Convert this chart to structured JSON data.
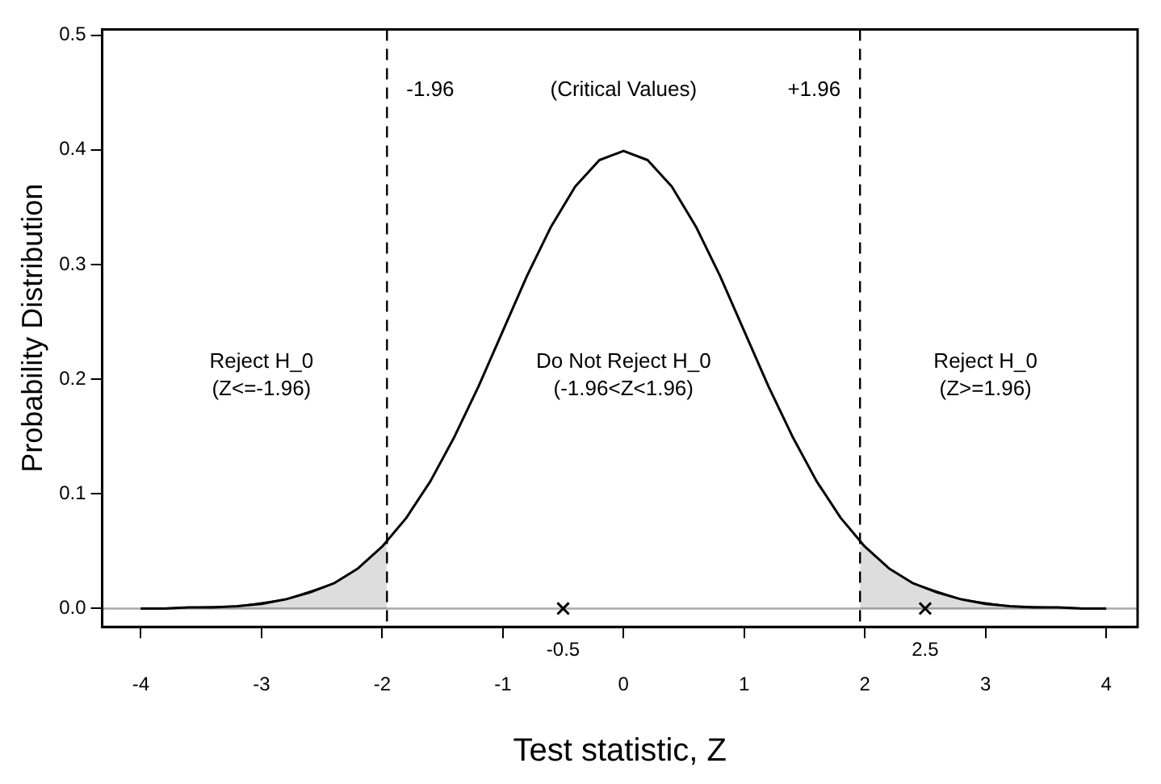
{
  "chart_data": {
    "type": "line",
    "xlabel": "Test statistic, Z",
    "ylabel": "Probability Distribution",
    "xlim": [
      -4.32,
      4.26
    ],
    "xticks": [
      -4,
      -3,
      -2,
      -1,
      0,
      1,
      2,
      3,
      4
    ],
    "ylim": [
      -0.016,
      0.505
    ],
    "yticks": [
      {
        "value": 0,
        "label": "0.0"
      },
      {
        "value": 0.1,
        "label": "0.1"
      },
      {
        "value": 0.2,
        "label": "0.2"
      },
      {
        "value": 0.3,
        "label": "0.3"
      },
      {
        "value": 0.4,
        "label": "0.4"
      },
      {
        "value": 0.5,
        "label": "0.5"
      }
    ],
    "grid": false,
    "legend": false,
    "series": [
      {
        "color": "#000000",
        "x": [
          -4,
          -3.8,
          -3.6,
          -3.4,
          -3.2,
          -3,
          -2.8,
          -2.6,
          -2.4,
          -2.2,
          -2,
          -1.8,
          -1.6,
          -1.4,
          -1.2,
          -1,
          -0.8,
          -0.6,
          -0.4,
          -0.2,
          0,
          0.2,
          0.4,
          0.6,
          0.8,
          1,
          1.2,
          1.4,
          1.6,
          1.8,
          2,
          2.2,
          2.4,
          2.6,
          2.8,
          3,
          3.2,
          3.4,
          3.6,
          3.8,
          4
        ],
        "values": [
          0,
          0,
          0.001,
          0.001,
          0.002,
          0.004,
          0.008,
          0.014,
          0.022,
          0.035,
          0.054,
          0.079,
          0.111,
          0.15,
          0.194,
          0.242,
          0.29,
          0.333,
          0.368,
          0.391,
          0.399,
          0.391,
          0.368,
          0.333,
          0.29,
          0.242,
          0.194,
          0.15,
          0.111,
          0.079,
          0.054,
          0.035,
          0.022,
          0.014,
          0.008,
          0.004,
          0.002,
          0.001,
          0.001,
          0,
          0
        ]
      },
      {
        "type": "area",
        "color": "#000000",
        "x": [
          -4,
          -3.6,
          -3.2,
          -2.8,
          -2.4,
          -2.2,
          -2,
          -1.96
        ],
        "values": [
          0,
          0.001,
          0.002,
          0.008,
          0.022,
          0.035,
          0.054,
          0.058
        ]
      },
      {
        "type": "area",
        "color": "#000000",
        "x": [
          1.96,
          2,
          2.2,
          2.4,
          2.8,
          3.2,
          3.6,
          4
        ],
        "values": [
          0.058,
          0.054,
          0.035,
          0.022,
          0.008,
          0.002,
          0.001,
          0
        ]
      },
      {
        "type": "scatter",
        "color": "#000000",
        "marker": "cross",
        "x": [
          -0.5,
          2.5
        ],
        "values": [
          0,
          0
        ]
      }
    ],
    "ref_lines": [
      {
        "axis": "y",
        "value": 0,
        "color": "#aaaaaa",
        "line_style": "solid"
      },
      {
        "axis": "x",
        "value": -1.96,
        "label": "-1.96",
        "color": "#000000",
        "line_style": "dashed"
      },
      {
        "axis": "x",
        "value": 1.96,
        "label": "+1.96",
        "color": "#000000",
        "line_style": "dashed"
      }
    ],
    "annotations": [
      "(Critical Values)",
      "Reject H_0\n(Z<=-1.96)",
      "Do Not Reject H_0\n(-1.96<Z<1.96)",
      "Reject H_0\n(Z>=1.96)",
      {
        "text": "-0.5",
        "x": -0.5,
        "y": 0
      },
      {
        "text": "2.5",
        "x": 2.5,
        "y": 0
      }
    ]
  }
}
